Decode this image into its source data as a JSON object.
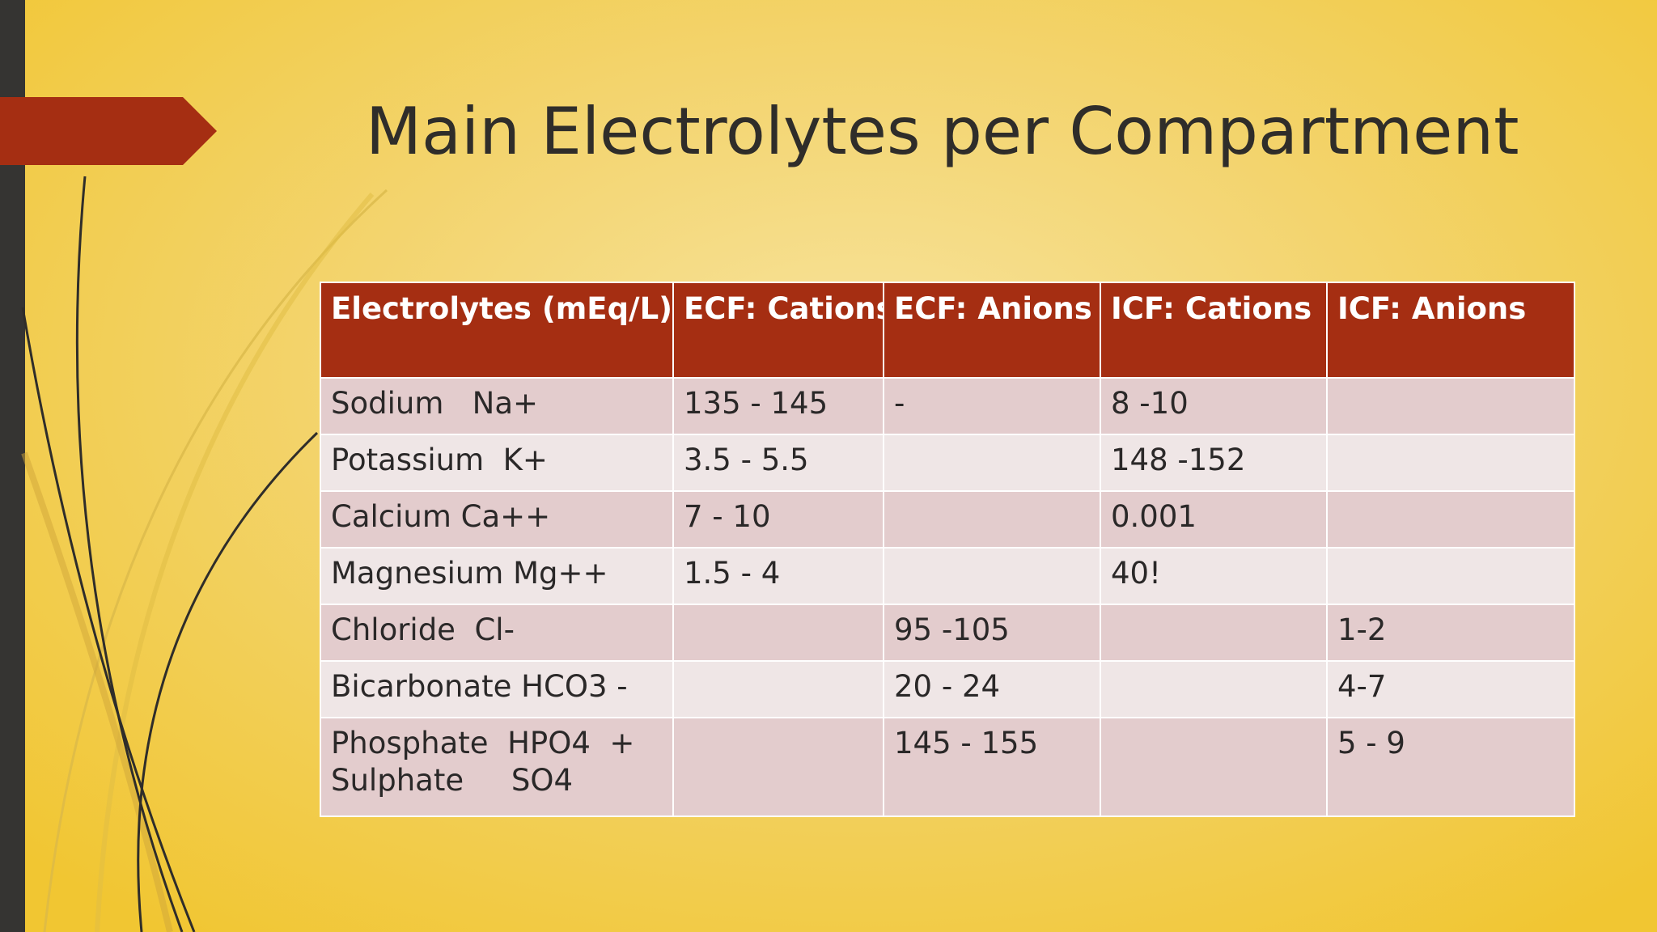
{
  "slide": {
    "title": "Main Electrolytes per Compartment"
  },
  "table": {
    "headers": [
      "Electrolytes (mEq/L)",
      "ECF: Cations",
      "ECF: Anions",
      "ICF: Cations",
      "ICF: Anions"
    ],
    "rows": [
      [
        "Sodium   Na+",
        "135 - 145",
        "-",
        "8 -10",
        ""
      ],
      [
        "Potassium  K+",
        "3.5 - 5.5",
        "",
        "148 -152",
        ""
      ],
      [
        "Calcium Ca++",
        "7 - 10",
        "",
        "0.001",
        ""
      ],
      [
        "Magnesium Mg++",
        "1.5 - 4",
        "",
        "40!",
        ""
      ],
      [
        "Chloride  Cl-",
        "",
        "95 -105",
        "",
        "1-2"
      ],
      [
        "Bicarbonate HCO3 -",
        "",
        "20 - 24",
        "",
        "4-7"
      ],
      [
        "Phosphate  HPO4  +\nSulphate     SO4",
        "",
        "145 - 155",
        "",
        "5 - 9"
      ]
    ]
  },
  "colors": {
    "background_light": "#f7e39c",
    "background_dark": "#f1c632",
    "accent": "#a52e12",
    "sidebar": "#353432",
    "row_odd": "#e3cccd",
    "row_even": "#efe6e6"
  }
}
